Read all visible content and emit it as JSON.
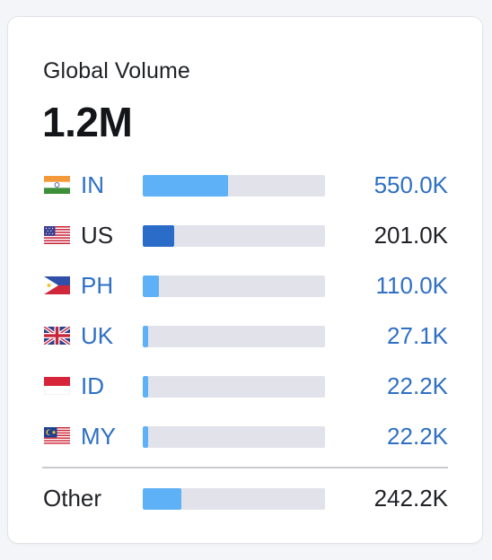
{
  "header": {
    "title": "Global Volume",
    "total": "1.2M"
  },
  "colors": {
    "link": "#2f6fc4",
    "bar_light": "#5eb1f6",
    "bar_dark": "#2b6cc8",
    "track": "#e2e3ea"
  },
  "countries": [
    {
      "code": "IN",
      "value": "550.0K",
      "share": 0.47,
      "flag": "india-flag-icon",
      "linked": true,
      "bar": "light"
    },
    {
      "code": "US",
      "value": "201.0K",
      "share": 0.17,
      "flag": "usa-flag-icon",
      "linked": false,
      "bar": "dark"
    },
    {
      "code": "PH",
      "value": "110.0K",
      "share": 0.09,
      "flag": "philippines-flag-icon",
      "linked": true,
      "bar": "light"
    },
    {
      "code": "UK",
      "value": "27.1K",
      "share": 0.03,
      "flag": "uk-flag-icon",
      "linked": true,
      "bar": "light"
    },
    {
      "code": "ID",
      "value": "22.2K",
      "share": 0.03,
      "flag": "indonesia-flag-icon",
      "linked": true,
      "bar": "light"
    },
    {
      "code": "MY",
      "value": "22.2K",
      "share": 0.03,
      "flag": "malaysia-flag-icon",
      "linked": true,
      "bar": "light"
    }
  ],
  "other": {
    "label": "Other",
    "value": "242.2K",
    "share": 0.21
  }
}
